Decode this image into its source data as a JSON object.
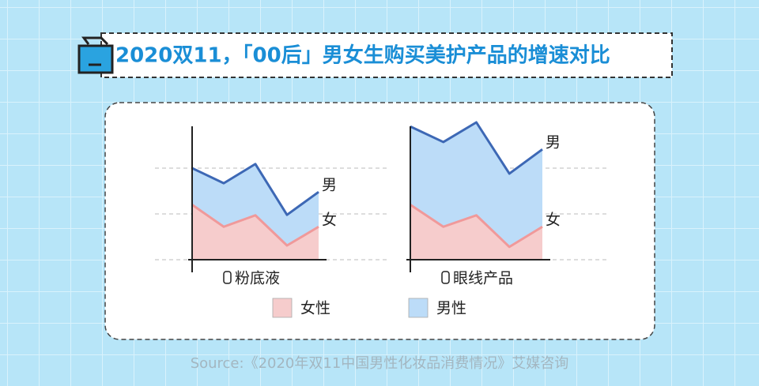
{
  "title": "2020双11，「00后」男女生购买美护产品的增速对比",
  "legend": [
    {
      "name": "女性",
      "color": "#f6cccc"
    },
    {
      "name": "男性",
      "color": "#bcdcf8"
    }
  ],
  "source": "Source:《2020年双11中国男性化妆品消费情况》艾媒咨询",
  "chart_data": [
    {
      "type": "area",
      "stacked": true,
      "xlabel": "粉底液",
      "categories": [
        null,
        null,
        null,
        null,
        null
      ],
      "ylim": [
        0,
        3
      ],
      "yticks": [
        0,
        1,
        2
      ],
      "grid": true,
      "series": [
        {
          "name": "女",
          "color": "#f6cccc",
          "line": "#f0999a",
          "values": [
            1.2,
            0.72,
            0.97,
            0.31,
            0.72
          ]
        },
        {
          "name": "男",
          "color": "#bcdcf8",
          "line": "#3d68b5",
          "values": [
            0.8,
            0.95,
            1.12,
            0.67,
            0.76
          ]
        }
      ]
    },
    {
      "type": "area",
      "stacked": true,
      "xlabel": "眼线产品",
      "categories": [
        null,
        null,
        null,
        null,
        null
      ],
      "ylim": [
        0,
        3
      ],
      "yticks": [
        0,
        1,
        2
      ],
      "grid": true,
      "series": [
        {
          "name": "女",
          "color": "#f6cccc",
          "line": "#f0999a",
          "values": [
            1.2,
            0.72,
            0.97,
            0.28,
            0.72
          ]
        },
        {
          "name": "男",
          "color": "#bcdcf8",
          "line": "#3d68b5",
          "values": [
            1.71,
            1.85,
            2.03,
            1.6,
            1.69
          ]
        }
      ]
    }
  ]
}
